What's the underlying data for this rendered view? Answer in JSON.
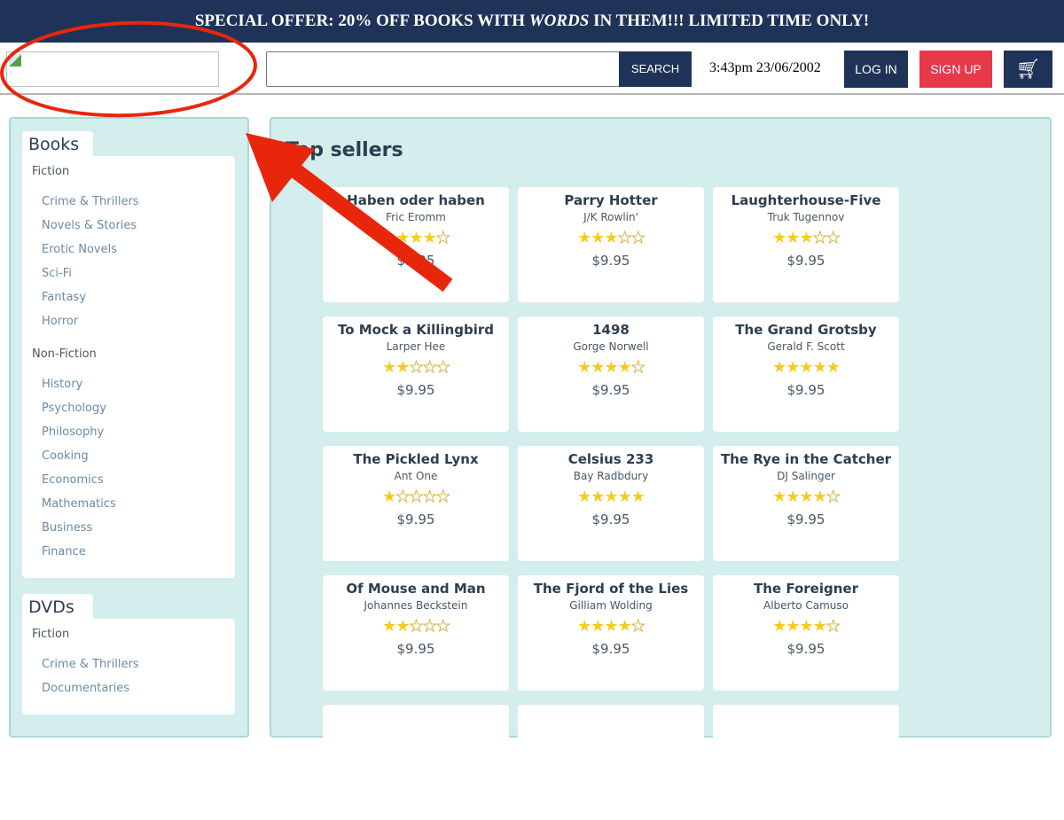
{
  "banner": {
    "before": "SPECIAL OFFER: 20% OFF BOOKS WITH ",
    "italic": "WORDS",
    "after": " IN THEM!!! LIMITED TIME ONLY!"
  },
  "header": {
    "search_value": "",
    "search_label": "SEARCH",
    "datetime": "3:43pm 23/06/2002",
    "login": "LOG IN",
    "signup": "SIGN UP",
    "cart_icon": "shopping-cart-icon"
  },
  "sidebar": [
    {
      "title": "Books",
      "sections": [
        {
          "label": "Fiction",
          "items": [
            "Crime & Thrillers",
            "Novels & Stories",
            "Erotic Novels",
            "Sci-Fi",
            "Fantasy",
            "Horror"
          ]
        },
        {
          "label": "Non-Fiction",
          "items": [
            "History",
            "Psychology",
            "Philosophy",
            "Cooking",
            "Economics",
            "Mathematics",
            "Business",
            "Finance"
          ]
        }
      ]
    },
    {
      "title": "DVDs",
      "sections": [
        {
          "label": "Fiction",
          "items": [
            "Crime & Thrillers",
            "Documentaries"
          ]
        }
      ]
    }
  ],
  "main": {
    "title": "Top sellers",
    "products": [
      {
        "title": "Haben oder haben",
        "author": "Fric Eromm",
        "rating": 4,
        "price": "$9.95"
      },
      {
        "title": "Parry Hotter",
        "author": "J/K Rowlin'",
        "rating": 3,
        "price": "$9.95"
      },
      {
        "title": "Laughterhouse-Five",
        "author": "Truk Tugennov",
        "rating": 3,
        "price": "$9.95"
      },
      {
        "title": "To Mock a Killingbird",
        "author": "Larper Hee",
        "rating": 2,
        "price": "$9.95"
      },
      {
        "title": "1498",
        "author": "Gorge Norwell",
        "rating": 4,
        "price": "$9.95"
      },
      {
        "title": "The Grand Grotsby",
        "author": "Gerald F. Scott",
        "rating": 5,
        "price": "$9.95"
      },
      {
        "title": "The Pickled Lynx",
        "author": "Ant One",
        "rating": 1,
        "price": "$9.95"
      },
      {
        "title": "Celsius 233",
        "author": "Bay Radbdury",
        "rating": 5,
        "price": "$9.95"
      },
      {
        "title": "The Rye in the Catcher",
        "author": "DJ Salinger",
        "rating": 4,
        "price": "$9.95"
      },
      {
        "title": "Of Mouse and Man",
        "author": "Johannes Beckstein",
        "rating": 2,
        "price": "$9.95"
      },
      {
        "title": "The Fjord of the Lies",
        "author": "Gilliam Wolding",
        "rating": 4,
        "price": "$9.95"
      },
      {
        "title": "The Foreigner",
        "author": "Alberto Camuso",
        "rating": 4,
        "price": "$9.95"
      }
    ]
  },
  "annotation_color": "#e8260c"
}
